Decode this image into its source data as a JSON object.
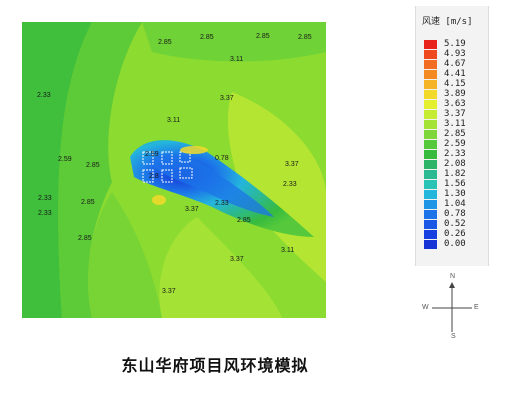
{
  "caption": "东山华府项目风环境模拟",
  "legend": {
    "title": "风速 [m/s]",
    "entries": [
      {
        "value": "5.19",
        "color": "#e8231c"
      },
      {
        "value": "4.93",
        "color": "#ee4a1e"
      },
      {
        "value": "4.67",
        "color": "#f26c22"
      },
      {
        "value": "4.41",
        "color": "#f48a22"
      },
      {
        "value": "4.15",
        "color": "#f5b326"
      },
      {
        "value": "3.89",
        "color": "#f3d92a"
      },
      {
        "value": "3.63",
        "color": "#e3ef2f"
      },
      {
        "value": "3.37",
        "color": "#c5eb33"
      },
      {
        "value": "3.11",
        "color": "#a4e236"
      },
      {
        "value": "2.85",
        "color": "#7fd63a"
      },
      {
        "value": "2.59",
        "color": "#55c93b"
      },
      {
        "value": "2.33",
        "color": "#37bb3e"
      },
      {
        "value": "2.08",
        "color": "#2eb468"
      },
      {
        "value": "1.82",
        "color": "#2bb991"
      },
      {
        "value": "1.56",
        "color": "#29c3b5"
      },
      {
        "value": "1.30",
        "color": "#24b5dd"
      },
      {
        "value": "1.04",
        "color": "#1f95e6"
      },
      {
        "value": "0.78",
        "color": "#1c74e8"
      },
      {
        "value": "0.52",
        "color": "#1a57e4"
      },
      {
        "value": "0.26",
        "color": "#183fe0"
      },
      {
        "value": "0.00",
        "color": "#1633d6"
      }
    ]
  },
  "compass": {
    "north": "N",
    "east": "E",
    "south": "S",
    "west": "W"
  },
  "contour_labels": [
    {
      "text": "2.85"
    },
    {
      "text": "2.85"
    },
    {
      "text": "2.85"
    },
    {
      "text": "2.85"
    },
    {
      "text": "3.11"
    },
    {
      "text": "2.33"
    },
    {
      "text": "3.37"
    },
    {
      "text": "3.11"
    },
    {
      "text": "2.59"
    },
    {
      "text": "2.85"
    },
    {
      "text": "2.59"
    },
    {
      "text": "0.78"
    },
    {
      "text": "3.37"
    },
    {
      "text": "2.8"
    },
    {
      "text": "2.33"
    },
    {
      "text": "2.33"
    },
    {
      "text": "2.85"
    },
    {
      "text": "2.33"
    },
    {
      "text": "3.37"
    },
    {
      "text": "2.33"
    },
    {
      "text": "2.85"
    },
    {
      "text": "2.85"
    },
    {
      "text": "3.11"
    },
    {
      "text": "3.37"
    },
    {
      "text": "3.37"
    }
  ]
}
